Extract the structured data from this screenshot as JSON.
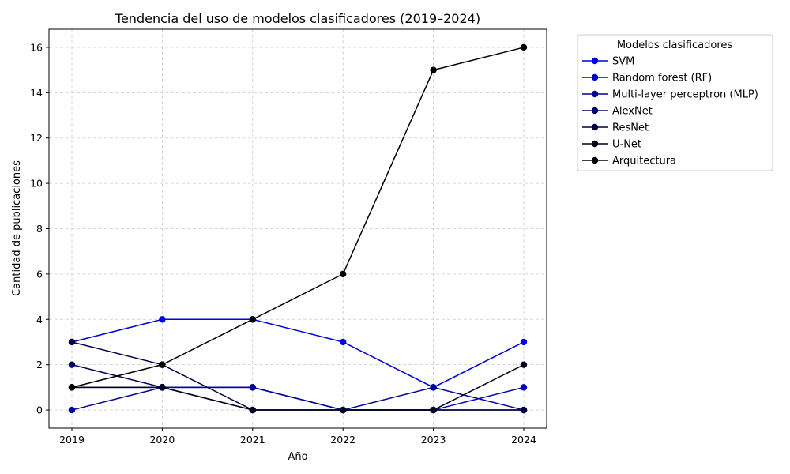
{
  "chart_data": {
    "type": "line",
    "title": "Tendencia del uso de modelos clasificadores (2019–2024)",
    "xlabel": "Año",
    "ylabel": "Cantidad de publicaciones",
    "categories": [
      "2019",
      "2020",
      "2021",
      "2022",
      "2023",
      "2024"
    ],
    "ylim": [
      -0.8,
      16.8
    ],
    "yticks": [
      0,
      2,
      4,
      6,
      8,
      10,
      12,
      14,
      16
    ],
    "grid": true,
    "legend_title": "Modelos clasificadores",
    "legend_position": "outside-top-right",
    "series": [
      {
        "name": "SVM",
        "color": "#0000e0",
        "values": [
          3,
          4,
          4,
          3,
          1,
          3
        ]
      },
      {
        "name": "Random forest (RF)",
        "color": "#0000c8",
        "values": [
          1,
          1,
          1,
          0,
          0,
          1
        ]
      },
      {
        "name": "Multi-layer perceptron (MLP)",
        "color": "#000099",
        "values": [
          0,
          1,
          1,
          0,
          1,
          0
        ]
      },
      {
        "name": "AlexNet",
        "color": "#000066",
        "values": [
          2,
          1,
          0,
          0,
          0,
          0
        ]
      },
      {
        "name": "ResNet",
        "color": "#000040",
        "values": [
          3,
          2,
          0,
          0,
          0,
          0
        ]
      },
      {
        "name": "U-Net",
        "color": "#00001a",
        "values": [
          1,
          1,
          0,
          0,
          0,
          2
        ]
      },
      {
        "name": "Arquitectura",
        "color": "#000000",
        "values": [
          1,
          2,
          4,
          6,
          15,
          16
        ]
      }
    ]
  }
}
